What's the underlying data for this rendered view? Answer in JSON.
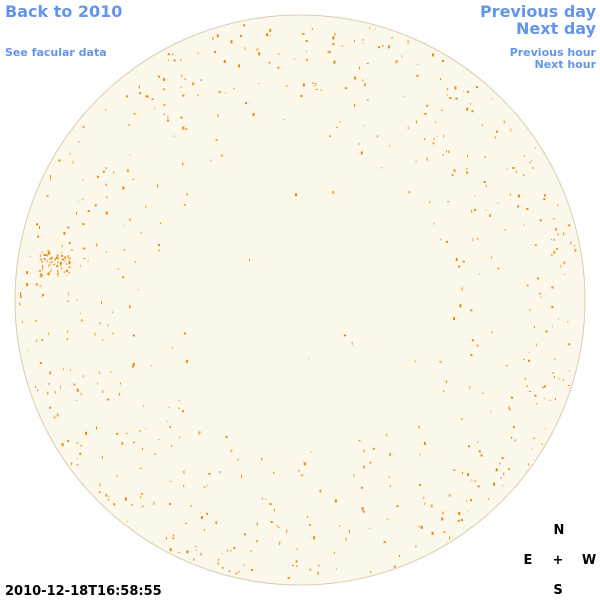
{
  "nav": {
    "back": "Back to 2010",
    "facular": "See facular data",
    "previous_day": "Previous day",
    "next_day": "Next day",
    "previous_hour": "Previous hour",
    "next_hour": "Next hour"
  },
  "timestamp": "2010-12-18T16:58:55",
  "compass": {
    "north": "N",
    "east": "E",
    "center": "+",
    "west": "W",
    "south": "S"
  }
}
